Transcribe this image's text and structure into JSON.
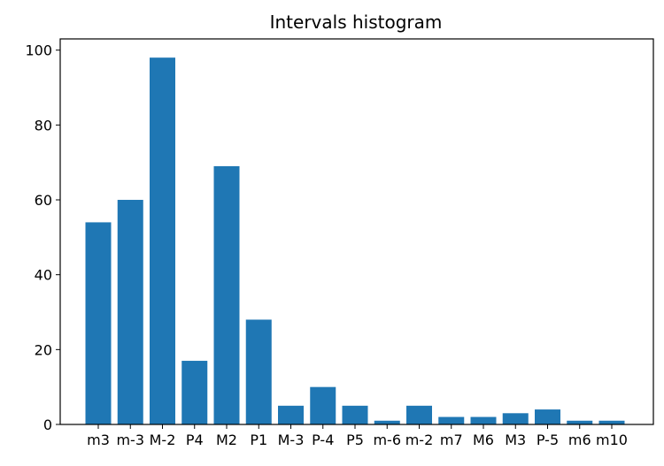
{
  "chart_data": {
    "type": "bar",
    "title": "Intervals histogram",
    "xlabel": "",
    "ylabel": "",
    "categories": [
      "m3",
      "m-3",
      "M-2",
      "P4",
      "M2",
      "P1",
      "M-3",
      "P-4",
      "P5",
      "m-6",
      "m-2",
      "m7",
      "M6",
      "M3",
      "P-5",
      "m6",
      "m10"
    ],
    "values": [
      54,
      60,
      98,
      17,
      69,
      28,
      5,
      10,
      5,
      1,
      5,
      2,
      2,
      3,
      4,
      1,
      1
    ],
    "ylim": [
      0,
      103
    ],
    "yticks": [
      0,
      20,
      40,
      60,
      80,
      100
    ],
    "grid": false,
    "bar_color": "#1f77b4"
  }
}
